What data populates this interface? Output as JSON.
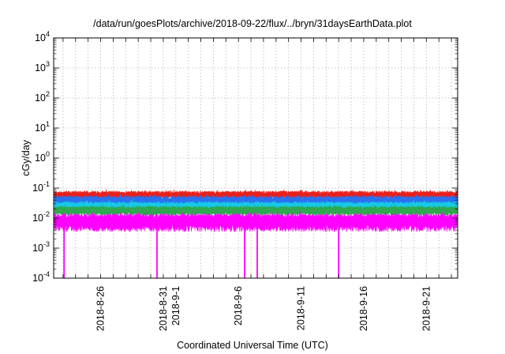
{
  "chart_data": {
    "type": "line",
    "title": "/data/run/goesPlots/archive/2018-09-22/flux/../bryn/31daysEarthData.plot",
    "xlabel": "Coordinated Universal Time (UTC)",
    "ylabel": "cGy/day",
    "yscale": "log",
    "ylim": [
      0.0001,
      10000
    ],
    "xlim": [
      "2018-08-22T06:00",
      "2018-09-23T12:00"
    ],
    "grid": true,
    "yticks": [
      {
        "value": 0.0001,
        "base": "10",
        "exp": "-4"
      },
      {
        "value": 0.001,
        "base": "10",
        "exp": "-3"
      },
      {
        "value": 0.01,
        "base": "10",
        "exp": "-2"
      },
      {
        "value": 0.1,
        "base": "10",
        "exp": "-1"
      },
      {
        "value": 1,
        "base": "10",
        "exp": "0"
      },
      {
        "value": 10,
        "base": "10",
        "exp": "1"
      },
      {
        "value": 100,
        "base": "10",
        "exp": "2"
      },
      {
        "value": 1000,
        "base": "10",
        "exp": "3"
      },
      {
        "value": 10000,
        "base": "10",
        "exp": "4"
      }
    ],
    "xtick_dates": [
      "2018-08-23",
      "2018-08-24",
      "2018-08-25",
      "2018-08-26",
      "2018-08-27",
      "2018-08-28",
      "2018-08-29",
      "2018-08-30",
      "2018-08-31",
      "2018-09-01",
      "2018-09-02",
      "2018-09-03",
      "2018-09-04",
      "2018-09-05",
      "2018-09-06",
      "2018-09-07",
      "2018-09-08",
      "2018-09-09",
      "2018-09-10",
      "2018-09-11",
      "2018-09-12",
      "2018-09-13",
      "2018-09-14",
      "2018-09-15",
      "2018-09-16",
      "2018-09-17",
      "2018-09-18",
      "2018-09-19",
      "2018-09-20",
      "2018-09-21",
      "2018-09-22",
      "2018-09-23"
    ],
    "xtick_labels": [
      {
        "date": "2018-08-26",
        "label": "2018-8-26"
      },
      {
        "date": "2018-08-31",
        "label": "2018-8-31"
      },
      {
        "date": "2018-09-01",
        "label": "2018-9-1"
      },
      {
        "date": "2018-09-06",
        "label": "2018-9-6"
      },
      {
        "date": "2018-09-11",
        "label": "2018-9-11"
      },
      {
        "date": "2018-09-16",
        "label": "2018-9-16"
      },
      {
        "date": "2018-09-21",
        "label": "2018-9-21"
      }
    ],
    "series": [
      {
        "color": "#e8201c",
        "baseline": 0.058,
        "upper": 0.08,
        "lower": 0.045
      },
      {
        "color": "#2a70f0",
        "baseline": 0.038,
        "upper": 0.055,
        "lower": 0.025
      },
      {
        "color": "#16c9e6",
        "baseline": 0.025,
        "upper": 0.035,
        "lower": 0.016
      },
      {
        "color": "#2fa84f",
        "baseline": 0.018,
        "upper": 0.025,
        "lower": 0.012
      },
      {
        "color": "#ff00ff",
        "baseline": 0.0085,
        "upper": 0.014,
        "lower": 0.0035
      }
    ],
    "dropouts": [
      {
        "date": "2018-08-23T02:00",
        "value": 0.0001
      },
      {
        "date": "2018-08-30T12:00",
        "value": 0.0001
      },
      {
        "date": "2018-09-06T12:00",
        "value": 0.0001
      },
      {
        "date": "2018-09-07T12:00",
        "value": 0.0001
      },
      {
        "date": "2018-09-14T00:00",
        "value": 0.0001
      }
    ]
  }
}
